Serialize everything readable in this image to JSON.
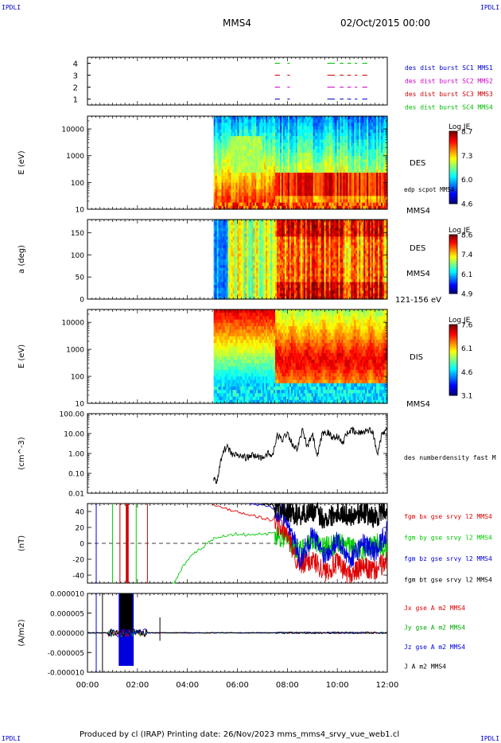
{
  "header": {
    "corner_tl": "IPDLI",
    "corner_tr": "IPDLI",
    "corner_bl": "IPDLI",
    "corner_br": "IPDLI",
    "spacecraft": "MMS4",
    "datetime": "02/Oct/2015 00:00"
  },
  "footer": {
    "text": "Produced by cl (IRAP)   Printing date: 26/Nov/2023   mms_mms4_srvy_vue_web1.cl"
  },
  "chart_data": [
    {
      "type": "scatter",
      "panel": "burst availability",
      "ylim": [
        0.5,
        4.5
      ],
      "yticks": [
        "1",
        "2",
        "3",
        "4"
      ],
      "legend": [
        {
          "label": "des dist burst SC1 MMS1",
          "color": "#0000cc"
        },
        {
          "label": "des dist burst SC2 MMS2",
          "color": "#cc00cc"
        },
        {
          "label": "des dist burst SC3 MMS3",
          "color": "#cc0000"
        },
        {
          "label": "des dist burst SC4 MMS4",
          "color": "#00bb00"
        }
      ]
    },
    {
      "type": "heatmap",
      "panel": "DES energy spectrogram",
      "ylabel": "E (eV)",
      "yscale": "log",
      "ylim": [
        10,
        30000
      ],
      "yticks": [
        "10",
        "100",
        "1000",
        "10000"
      ],
      "side_labels": [
        "DES",
        "edp scpot MMS4",
        "MMS4"
      ],
      "colorbar": {
        "title": "Log JE",
        "ticks": [
          "8.7",
          "7.3",
          "6.0",
          "4.6"
        ],
        "range": [
          4.6,
          8.7
        ]
      },
      "data_start_hour": 5.05
    },
    {
      "type": "heatmap",
      "panel": "DES pitch angle",
      "ylabel": "a (deg)",
      "ylim": [
        0,
        180
      ],
      "yticks": [
        "0",
        "50",
        "100",
        "150"
      ],
      "side_labels": [
        "DES",
        "MMS4",
        "121-156 eV"
      ],
      "colorbar": {
        "title": "Log JE",
        "ticks": [
          "8.6",
          "7.4",
          "6.1",
          "4.9"
        ],
        "range": [
          4.9,
          8.6
        ]
      },
      "data_start_hour": 5.05
    },
    {
      "type": "heatmap",
      "panel": "DIS energy spectrogram",
      "ylabel": "E (eV)",
      "yscale": "log",
      "ylim": [
        10,
        30000
      ],
      "yticks": [
        "10",
        "100",
        "1000",
        "10000"
      ],
      "side_labels": [
        "DIS",
        "MMS4"
      ],
      "colorbar": {
        "title": "Log JE",
        "ticks": [
          "7.6",
          "6.1",
          "4.6",
          "3.1"
        ],
        "range": [
          3.1,
          7.6
        ]
      },
      "data_start_hour": 5.05
    },
    {
      "type": "line",
      "panel": "density",
      "ylabel": "(cm^-3)",
      "yscale": "log",
      "ylim": [
        0.01,
        100
      ],
      "yticks": [
        "0.01",
        "0.10",
        "1.00",
        "10.00",
        "100.00"
      ],
      "series": [
        {
          "name": "des numberdensity fast M",
          "color": "#000000",
          "x": [
            5.05,
            5.2,
            5.4,
            5.6,
            5.8,
            6.0,
            6.2,
            6.4,
            6.6,
            6.8,
            7.0,
            7.2,
            7.4,
            7.6,
            7.8,
            8.0,
            8.2,
            8.4,
            8.6,
            8.8,
            9.0,
            9.2,
            9.4,
            9.6,
            9.8,
            10.0,
            10.2,
            10.4,
            10.6,
            10.8,
            11.0,
            11.2,
            11.4,
            11.6,
            11.8,
            12.0
          ],
          "y": [
            0.05,
            0.04,
            1.2,
            2.0,
            0.9,
            0.8,
            0.7,
            0.6,
            0.8,
            0.7,
            0.6,
            1.0,
            0.7,
            8.0,
            5.0,
            12,
            3.0,
            1.5,
            15,
            2.0,
            10,
            0.6,
            10,
            12,
            6.0,
            8.0,
            3.0,
            12,
            14,
            10,
            12,
            15,
            14,
            1.0,
            12,
            15
          ]
        }
      ]
    },
    {
      "type": "line",
      "panel": "magnetic field",
      "ylabel": "(nT)",
      "ylim": [
        -50,
        50
      ],
      "yticks": [
        "-40",
        "-20",
        "0",
        "20",
        "40"
      ],
      "series": [
        {
          "name": "fgm bx gse srvy l2 MMS4",
          "color": "#dd0000",
          "x": [
            5.0,
            5.5,
            6.0,
            6.5,
            7.0,
            7.5,
            8.0,
            8.5,
            9.0,
            9.5,
            10.0,
            10.5,
            11.0,
            11.5,
            12.0
          ],
          "y": [
            48,
            44,
            40,
            36,
            32,
            28,
            10,
            -30,
            -20,
            -35,
            -25,
            -40,
            -30,
            -35,
            -20
          ]
        },
        {
          "name": "fgm by gse srvy l2 MMS4",
          "color": "#00cc00",
          "x": [
            3.4,
            3.8,
            4.2,
            4.6,
            5.0,
            5.5,
            6.0,
            6.5,
            7.0,
            7.5,
            8.0,
            8.5,
            9.0,
            9.5,
            10.0,
            10.5,
            11.0,
            11.5,
            12.0
          ],
          "y": [
            -55,
            -30,
            -15,
            -5,
            5,
            10,
            12,
            10,
            12,
            12,
            5,
            -10,
            5,
            -5,
            0,
            -5,
            -10,
            0,
            -5
          ]
        },
        {
          "name": "fgm bz gse srvy l2 MMS4",
          "color": "#0000dd",
          "x": [
            6.5,
            7.0,
            7.5,
            8.0,
            8.5,
            9.0,
            9.5,
            10.0,
            10.5,
            11.0,
            11.5,
            12.0
          ],
          "y": [
            50,
            48,
            44,
            30,
            -20,
            10,
            -15,
            5,
            -20,
            0,
            -10,
            15
          ]
        },
        {
          "name": "fgm bt gse srvy l2 MMS4",
          "color": "#000000",
          "x": [
            7.0,
            7.5,
            8.0,
            8.5,
            9.0,
            9.5,
            10.0,
            10.5,
            11.0,
            11.5,
            12.0
          ],
          "y": [
            50,
            48,
            40,
            35,
            42,
            30,
            40,
            35,
            40,
            32,
            45
          ]
        }
      ]
    },
    {
      "type": "line",
      "panel": "current density",
      "ylabel": "(A/m2)",
      "ylim": [
        -0.0001,
        0.0001
      ],
      "yticks": [
        "-0.000010",
        "-0.000005",
        "0.000000",
        "0.000005",
        "0.000010"
      ],
      "series": [
        {
          "name": "Jx gse A m2 MMS4",
          "color": "#dd0000"
        },
        {
          "name": "Jy gse A m2 MMS4",
          "color": "#00aa00"
        },
        {
          "name": "Jz gse A m2 MMS4",
          "color": "#0000dd"
        },
        {
          "name": "J A m2 MMS4",
          "color": "#000000"
        }
      ]
    }
  ],
  "time_axis": {
    "ticks": [
      "00:00",
      "02:00",
      "04:00",
      "06:00",
      "08:00",
      "10:00",
      "12:00"
    ],
    "range_hours": [
      0,
      12
    ]
  }
}
